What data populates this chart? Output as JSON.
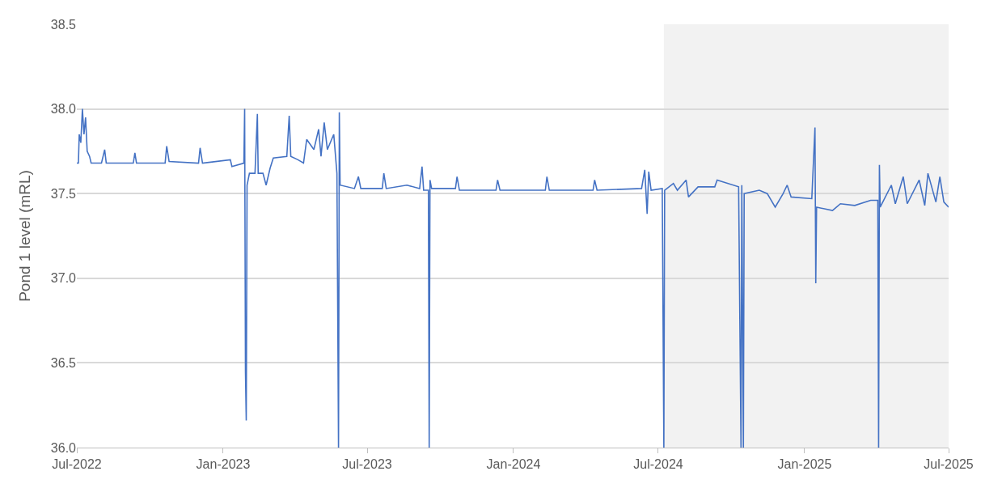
{
  "chart_data": {
    "type": "line",
    "ylabel": "Pond 1 level (mRL)",
    "xlim": [
      "2022-07-01",
      "2025-07-01"
    ],
    "xticks": [
      {
        "value": "2022-07-01",
        "label": "Jul-2022"
      },
      {
        "value": "2023-01-01",
        "label": "Jan-2023"
      },
      {
        "value": "2023-07-01",
        "label": "Jul-2023"
      },
      {
        "value": "2024-01-01",
        "label": "Jan-2024"
      },
      {
        "value": "2024-07-01",
        "label": "Jul-2024"
      },
      {
        "value": "2025-01-01",
        "label": "Jan-2025"
      },
      {
        "value": "2025-07-01",
        "label": "Jul-2025"
      }
    ],
    "ylim": [
      36.0,
      38.5
    ],
    "yticks": [
      {
        "value": 36.0,
        "label": "36.0"
      },
      {
        "value": 36.5,
        "label": "36.5"
      },
      {
        "value": 37.0,
        "label": "37.0"
      },
      {
        "value": 37.5,
        "label": "37.5"
      },
      {
        "value": 38.0,
        "label": "38.0"
      },
      {
        "value": 38.5,
        "label": "38.5"
      }
    ],
    "grid": "y",
    "line_style": "solid",
    "bands": [
      {
        "axis": "x",
        "from": "2024-07-08",
        "to": "2025-07-01",
        "color": "#f2f2f2"
      }
    ],
    "series": [
      {
        "color": "#4472c4",
        "x": [
          "2022-07-01",
          "2022-07-03",
          "2022-07-04",
          "2022-07-06",
          "2022-07-08",
          "2022-07-10",
          "2022-07-12",
          "2022-07-14",
          "2022-07-17",
          "2022-07-19",
          "2022-08-01",
          "2022-08-05",
          "2022-08-07",
          "2022-09-10",
          "2022-09-12",
          "2022-09-14",
          "2022-10-20",
          "2022-10-22",
          "2022-10-25",
          "2022-12-01",
          "2022-12-03",
          "2022-12-06",
          "2023-01-10",
          "2023-01-12",
          "2023-01-27",
          "2023-01-28",
          "2023-01-29",
          "2023-01-30",
          "2023-01-31",
          "2023-02-03",
          "2023-02-10",
          "2023-02-13",
          "2023-02-14",
          "2023-02-20",
          "2023-02-24",
          "2023-03-01",
          "2023-03-05",
          "2023-03-22",
          "2023-03-25",
          "2023-03-27",
          "2023-04-05",
          "2023-04-12",
          "2023-04-16",
          "2023-04-25",
          "2023-05-01",
          "2023-05-04",
          "2023-05-08",
          "2023-05-12",
          "2023-05-20",
          "2023-05-24",
          "2023-05-26",
          "2023-05-27",
          "2023-05-28",
          "2023-06-15",
          "2023-06-20",
          "2023-06-23",
          "2023-07-20",
          "2023-07-22",
          "2023-07-25",
          "2023-08-20",
          "2023-09-05",
          "2023-09-08",
          "2023-09-10",
          "2023-09-16",
          "2023-09-17",
          "2023-09-18",
          "2023-09-20",
          "2023-10-20",
          "2023-10-22",
          "2023-10-25",
          "2023-12-10",
          "2023-12-12",
          "2023-12-15",
          "2024-02-10",
          "2024-02-12",
          "2024-02-15",
          "2024-04-10",
          "2024-04-12",
          "2024-04-15",
          "2024-06-10",
          "2024-06-14",
          "2024-06-17",
          "2024-06-19",
          "2024-06-22",
          "2024-07-06",
          "2024-07-08",
          "2024-07-09",
          "2024-07-20",
          "2024-07-25",
          "2024-08-05",
          "2024-08-08",
          "2024-08-20",
          "2024-09-10",
          "2024-09-13",
          "2024-10-10",
          "2024-10-13",
          "2024-10-14",
          "2024-10-16",
          "2024-10-17",
          "2024-11-05",
          "2024-11-15",
          "2024-11-25",
          "2024-12-05",
          "2024-12-10",
          "2024-12-15",
          "2025-01-10",
          "2025-01-14",
          "2025-01-15",
          "2025-01-16",
          "2025-02-05",
          "2025-02-15",
          "2025-03-05",
          "2025-03-25",
          "2025-04-03",
          "2025-04-04",
          "2025-04-05",
          "2025-04-06",
          "2025-04-20",
          "2025-04-25",
          "2025-05-05",
          "2025-05-10",
          "2025-05-25",
          "2025-06-01",
          "2025-06-05",
          "2025-06-15",
          "2025-06-20",
          "2025-06-25",
          "2025-07-01"
        ],
        "values": [
          37.68,
          37.68,
          37.85,
          37.8,
          38.0,
          37.85,
          37.95,
          37.75,
          37.72,
          37.68,
          37.68,
          37.76,
          37.68,
          37.68,
          37.74,
          37.68,
          37.68,
          37.78,
          37.69,
          37.68,
          37.77,
          37.68,
          37.7,
          37.66,
          37.68,
          38.0,
          36.45,
          36.16,
          37.55,
          37.62,
          37.62,
          37.97,
          37.62,
          37.62,
          37.55,
          37.65,
          37.71,
          37.72,
          37.96,
          37.72,
          37.7,
          37.68,
          37.82,
          37.76,
          37.88,
          37.72,
          37.92,
          37.76,
          37.85,
          37.62,
          36.0,
          37.98,
          37.55,
          37.53,
          37.6,
          37.53,
          37.53,
          37.62,
          37.53,
          37.55,
          37.53,
          37.66,
          37.52,
          37.52,
          36.0,
          37.58,
          37.53,
          37.53,
          37.6,
          37.52,
          37.52,
          37.58,
          37.52,
          37.52,
          37.6,
          37.52,
          37.52,
          37.58,
          37.52,
          37.53,
          37.64,
          37.38,
          37.63,
          37.52,
          37.53,
          36.0,
          37.52,
          37.56,
          37.52,
          37.58,
          37.48,
          37.54,
          37.54,
          37.58,
          37.54,
          36.0,
          37.55,
          36.0,
          37.5,
          37.52,
          37.5,
          37.42,
          37.5,
          37.55,
          37.48,
          37.47,
          37.89,
          36.97,
          37.42,
          37.4,
          37.44,
          37.43,
          37.46,
          37.46,
          36.0,
          37.67,
          37.42,
          37.55,
          37.44,
          37.6,
          37.44,
          37.58,
          37.43,
          37.62,
          37.45,
          37.6,
          37.45,
          37.42
        ]
      }
    ]
  }
}
